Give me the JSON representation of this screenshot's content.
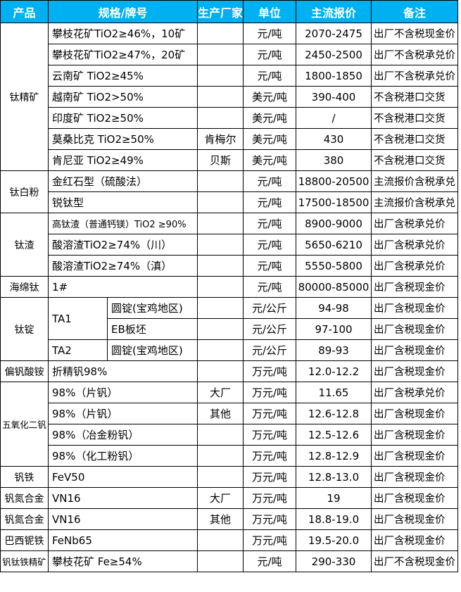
{
  "theme": {
    "header_bg": "#00B0F0",
    "header_text": "#ffffff",
    "border": "#000000",
    "body_text": "#000000",
    "page_bg": "#ffffff"
  },
  "chart_data": {
    "type": "table",
    "title": "",
    "columns": [
      "产品",
      "规格/牌号",
      "生产厂家",
      "单位",
      "主流报价",
      "备注"
    ],
    "rows": [
      {
        "product": "钛精矿",
        "product_rowspan": 7,
        "spec": "攀枝花矿TiO2≥46%，10矿",
        "maker": "",
        "unit": "元/吨",
        "price": "2070-2475",
        "note": "出厂不含税现金价"
      },
      {
        "spec": "攀枝花矿TiO2≥47%，20矿",
        "maker": "",
        "unit": "元/吨",
        "price": "2450-2500",
        "note": "出厂不含税承兑价"
      },
      {
        "spec": "云南矿 TiO2≥45%",
        "maker": "",
        "unit": "元/吨",
        "price": "1800-1850",
        "note": "出厂不含税承兑价"
      },
      {
        "spec": "越南矿 TiO2>50%",
        "maker": "",
        "unit": "美元/吨",
        "price": "390-400",
        "note": "不含税港口交货"
      },
      {
        "spec": "印度矿 TiO2≥50%",
        "maker": "",
        "unit": "美元/吨",
        "price": "/",
        "note": "不含税港口交货"
      },
      {
        "spec": "莫桑比克 TiO2≥50%",
        "maker": "肯梅尔",
        "unit": "美元/吨",
        "price": "430",
        "note": "不含税港口交货"
      },
      {
        "spec": "肯尼亚 TiO2≥49%",
        "maker": "贝斯",
        "unit": "美元/吨",
        "price": "380",
        "note": "不含税港口交货"
      },
      {
        "product": "钛白粉",
        "product_rowspan": 2,
        "spec": "金红石型（硫酸法）",
        "maker": "",
        "unit": "元/吨",
        "price": "18800-20500",
        "note": "主流报价含税承兑"
      },
      {
        "spec": "锐钛型",
        "maker": "",
        "unit": "元/吨",
        "price": "17500-18500",
        "note": "主流报价含税承兑"
      },
      {
        "product": "钛渣",
        "product_rowspan": 3,
        "spec": "高钛渣（普通钙镁）TiO2 ≥90%",
        "maker": "",
        "unit": "元/吨",
        "price": "8900-9000",
        "note": "出厂含税承兑价"
      },
      {
        "spec": "酸溶渣TiO2≥74%（川）",
        "maker": "",
        "unit": "元/吨",
        "price": "5650-6210",
        "note": "出厂含税承兑价"
      },
      {
        "spec": "酸溶渣TiO2≥74%（滇）",
        "maker": "",
        "unit": "元/吨",
        "price": "5550-5800",
        "note": "出厂含税承兑价"
      },
      {
        "product": "海绵钛",
        "spec": "1#",
        "maker": "",
        "unit": "元/吨",
        "price": "80000-85000",
        "note": "出厂含税现金价"
      },
      {
        "product": "钛锭",
        "product_rowspan": 3,
        "spec_a": "TA1",
        "spec_a_rowspan": 2,
        "spec_b": "圆锭(宝鸡地区)",
        "maker": "",
        "unit": "元/公斤",
        "price": "94-98",
        "note": "出厂含税现金价"
      },
      {
        "spec_b": "EB板坯",
        "maker": "",
        "unit": "元/公斤",
        "price": "97-100",
        "note": "出厂含税现金价"
      },
      {
        "spec_a": "TA2",
        "spec_b": "圆锭(宝鸡地区)",
        "maker": "",
        "unit": "元/公斤",
        "price": "89-93",
        "note": "出厂含税现金价"
      },
      {
        "product": "偏钒酸铵",
        "spec": "折精钒98%",
        "maker": "",
        "unit": "万元/吨",
        "price": "12.0-12.2",
        "note": "出厂含税现金价"
      },
      {
        "product": "五氧化二钒",
        "product_rowspan": 4,
        "spec": "98%（片钒）",
        "maker": "大厂",
        "unit": "万元/吨",
        "price": "11.65",
        "note": "出厂含税承兑价"
      },
      {
        "spec": "98%（片钒）",
        "maker": "其他",
        "unit": "万元/吨",
        "price": "12.6-12.8",
        "note": "出厂含税现金价"
      },
      {
        "spec": "98%（冶金粉钒）",
        "maker": "",
        "unit": "万元/吨",
        "price": "12.5-12.6",
        "note": "出厂含税现金价"
      },
      {
        "spec": "98%（化工粉钒）",
        "maker": "",
        "unit": "万元/吨",
        "price": "12.8-12.9",
        "note": "出厂含税现金价"
      },
      {
        "product": "钒铁",
        "spec": "FeV50",
        "maker": "",
        "unit": "万元/吨",
        "price": "12.8-13.0",
        "note": "出厂含税现金价"
      },
      {
        "product": "钒氮合金",
        "spec": "VN16",
        "maker": "大厂",
        "unit": "万元/吨",
        "price": "19",
        "note": "出厂含税现金价"
      },
      {
        "product": "钒氮合金",
        "spec": "VN16",
        "maker": "其他",
        "unit": "万元/吨",
        "price": "18.8-19.0",
        "note": "出厂含税现金价"
      },
      {
        "product": "巴西铌铁",
        "spec": "FeNb65",
        "maker": "",
        "unit": "万元/吨",
        "price": "19.5-20.0",
        "note": "出厂含税现金价"
      },
      {
        "product": "钒钛铁精矿",
        "spec": "攀枝花矿 Fe≥54%",
        "maker": "",
        "unit": "元/吨",
        "price": "290-330",
        "note": "出厂不含税现金价"
      }
    ]
  }
}
